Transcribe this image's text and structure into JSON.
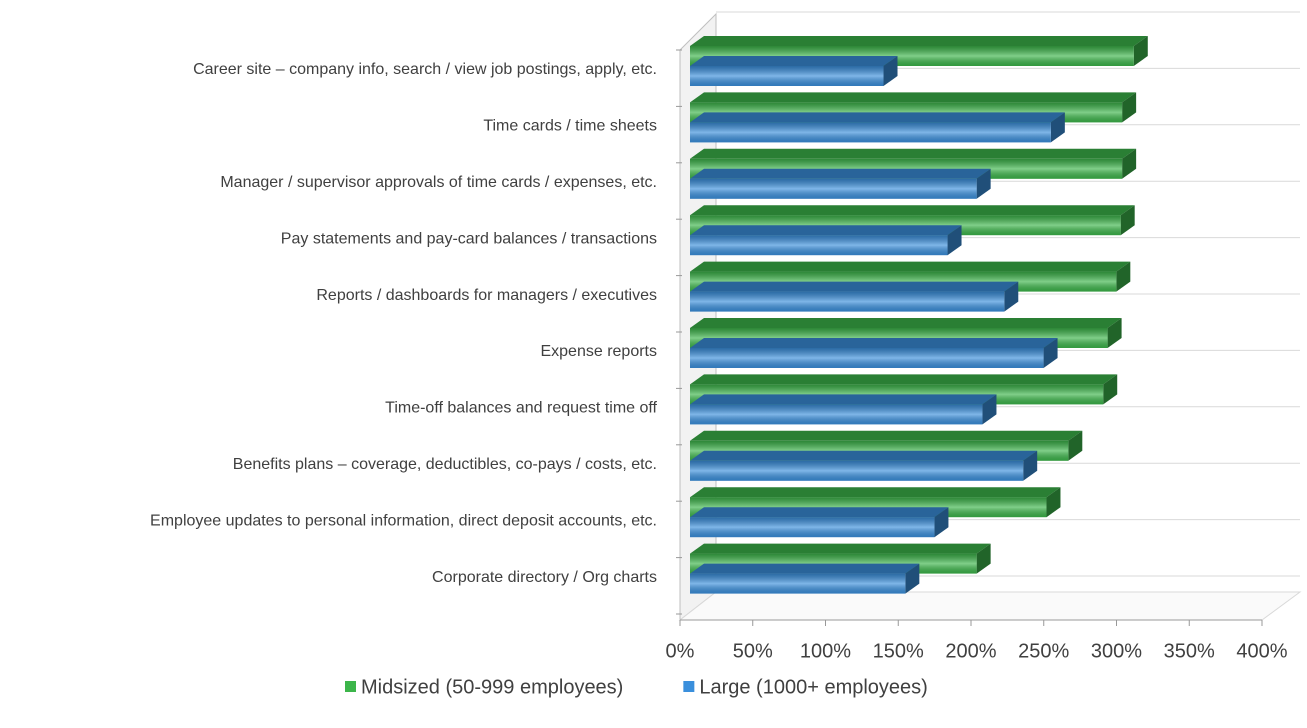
{
  "chart_data": {
    "type": "bar3d_horizontal",
    "categories": [
      "Career site – company info, search / view job postings, apply, etc.",
      "Time cards / time sheets",
      "Manager / supervisor approvals of time cards / expenses, etc.",
      "Pay statements and pay-card balances / transactions",
      "Reports / dashboards for managers / executives",
      "Expense reports",
      "Time-off balances and request time off",
      "Benefits plans – coverage, deductibles, co-pays / costs, etc.",
      "Employee updates to personal information, direct deposit  accounts, etc.",
      "Corporate directory / Org charts"
    ],
    "series": [
      {
        "name": "Midsized (50-999 employees)",
        "color": "#3cb54a",
        "values": [
          305,
          297,
          297,
          296,
          293,
          287,
          284,
          260,
          245,
          197
        ]
      },
      {
        "name": "Large (1000+ employees)",
        "color": "#3a8fdc",
        "values": [
          133,
          248,
          197,
          177,
          216,
          243,
          201,
          229,
          168,
          148
        ]
      }
    ],
    "xlim": [
      0,
      400
    ],
    "xticks": [
      {
        "value": 0,
        "label": "0%"
      },
      {
        "value": 50,
        "label": "50%"
      },
      {
        "value": 100,
        "label": "100%"
      },
      {
        "value": 150,
        "label": "150%"
      },
      {
        "value": 200,
        "label": "200%"
      },
      {
        "value": 250,
        "label": "250%"
      },
      {
        "value": 300,
        "label": "300%"
      },
      {
        "value": 350,
        "label": "350%"
      },
      {
        "value": 400,
        "label": "400%"
      }
    ],
    "legend": "bottom"
  }
}
